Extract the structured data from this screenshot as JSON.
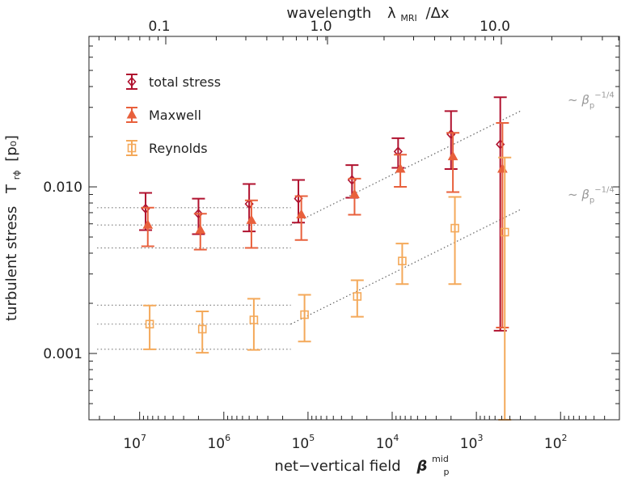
{
  "chart_data": {
    "type": "scatter",
    "title": "",
    "top_axis": {
      "label": "wavelength",
      "label_symbol": "λ",
      "label_sub": "MRI",
      "label_tail": "/Δx",
      "ticks": [
        "0.1",
        "1.0",
        "10.0"
      ]
    },
    "xlabel": "net−vertical field",
    "xlabel_symbol": "β",
    "xlabel_sub": "p",
    "xlabel_sup": "mid",
    "ylabel": "turbulent stress",
    "ylabel_symbol": "T",
    "ylabel_sub": "rϕ",
    "ylabel_unit": "[p₀]",
    "x_scale": "log",
    "x_reversed": true,
    "xlim": [
      40000000.0,
      20.0
    ],
    "y_scale": "log",
    "ylim": [
      0.0004,
      0.08
    ],
    "x_ticks": [
      {
        "value": 10000000.0,
        "base": "10",
        "exp": "7"
      },
      {
        "value": 1000000.0,
        "base": "10",
        "exp": "6"
      },
      {
        "value": 100000.0,
        "base": "10",
        "exp": "5"
      },
      {
        "value": 10000.0,
        "base": "10",
        "exp": "4"
      },
      {
        "value": 1000.0,
        "base": "10",
        "exp": "3"
      },
      {
        "value": 100.0,
        "base": "10",
        "exp": "2"
      }
    ],
    "y_ticks": [
      {
        "value": 0.001,
        "label": "0.001"
      },
      {
        "value": 0.01,
        "label": "0.010"
      }
    ],
    "legend_position": "top-left",
    "series": [
      {
        "name": "total stress",
        "marker": "diamond",
        "color": "#b0122f",
        "points": [
          {
            "x": 8500000.0,
            "y": 0.0074,
            "lo": 0.0055,
            "hi": 0.0092
          },
          {
            "x": 2000000.0,
            "y": 0.0069,
            "lo": 0.0052,
            "hi": 0.0085
          },
          {
            "x": 500000.0,
            "y": 0.0079,
            "lo": 0.0054,
            "hi": 0.0104
          },
          {
            "x": 130000.0,
            "y": 0.0085,
            "lo": 0.0061,
            "hi": 0.011
          },
          {
            "x": 30000.0,
            "y": 0.011,
            "lo": 0.0086,
            "hi": 0.0135
          },
          {
            "x": 8500.0,
            "y": 0.0163,
            "lo": 0.013,
            "hi": 0.0196
          },
          {
            "x": 2000.0,
            "y": 0.0207,
            "lo": 0.0128,
            "hi": 0.0285
          },
          {
            "x": 520.0,
            "y": 0.018,
            "lo": 0.00137,
            "hi": 0.0345
          }
        ]
      },
      {
        "name": "Maxwell",
        "marker": "triangle",
        "color": "#e8603c",
        "points": [
          {
            "x": 8000000.0,
            "y": 0.0059,
            "lo": 0.0044,
            "hi": 0.0075
          },
          {
            "x": 1900000.0,
            "y": 0.0055,
            "lo": 0.0042,
            "hi": 0.0069
          },
          {
            "x": 470000.0,
            "y": 0.0063,
            "lo": 0.0043,
            "hi": 0.0083
          },
          {
            "x": 120000.0,
            "y": 0.0068,
            "lo": 0.0048,
            "hi": 0.0088
          },
          {
            "x": 28000.0,
            "y": 0.009,
            "lo": 0.0068,
            "hi": 0.0112
          },
          {
            "x": 8000.0,
            "y": 0.0128,
            "lo": 0.01,
            "hi": 0.0156
          },
          {
            "x": 1900.0,
            "y": 0.0152,
            "lo": 0.0093,
            "hi": 0.0211
          },
          {
            "x": 490.0,
            "y": 0.0128,
            "lo": 0.00143,
            "hi": 0.0242
          }
        ]
      },
      {
        "name": "Reynolds",
        "marker": "square",
        "color": "#f4a95a",
        "points": [
          {
            "x": 7600000.0,
            "y": 0.0015,
            "lo": 0.00106,
            "hi": 0.00194
          },
          {
            "x": 1800000.0,
            "y": 0.0014,
            "lo": 0.00101,
            "hi": 0.00179
          },
          {
            "x": 440000.0,
            "y": 0.00159,
            "lo": 0.00105,
            "hi": 0.00213
          },
          {
            "x": 110000.0,
            "y": 0.00171,
            "lo": 0.00118,
            "hi": 0.00225
          },
          {
            "x": 26000.0,
            "y": 0.0022,
            "lo": 0.00166,
            "hi": 0.00275
          },
          {
            "x": 7600.0,
            "y": 0.00359,
            "lo": 0.00261,
            "hi": 0.00457
          },
          {
            "x": 1800.0,
            "y": 0.00565,
            "lo": 0.00261,
            "hi": 0.0087
          },
          {
            "x": 460.0,
            "y": 0.00535,
            "lo": 0.0004,
            "hi": 0.015
          }
        ]
      }
    ],
    "reference_lines": [
      {
        "kind": "plateau",
        "x_from": 32000000.0,
        "x_to": 160000.0,
        "y": 0.0075
      },
      {
        "kind": "plateau",
        "x_from": 32000000.0,
        "x_to": 160000.0,
        "y": 0.0059
      },
      {
        "kind": "plateau",
        "x_from": 32000000.0,
        "x_to": 160000.0,
        "y": 0.0043
      },
      {
        "kind": "plateau",
        "x_from": 32000000.0,
        "x_to": 160000.0,
        "y": 0.00195
      },
      {
        "kind": "plateau",
        "x_from": 32000000.0,
        "x_to": 160000.0,
        "y": 0.0015
      },
      {
        "kind": "plateau",
        "x_from": 32000000.0,
        "x_to": 160000.0,
        "y": 0.00106
      },
      {
        "kind": "power-law",
        "x_from": 160000.0,
        "x_to": 300.0,
        "y_from": 0.0059,
        "y_to": 0.0285
      },
      {
        "kind": "power-law",
        "x_from": 160000.0,
        "x_to": 300.0,
        "y_from": 0.0015,
        "y_to": 0.0073
      }
    ],
    "annotations": [
      {
        "text": "~ β",
        "sub": "p",
        "sup": "−1/4",
        "near_y": 0.0315
      },
      {
        "text": "~ β",
        "sub": "p",
        "sup": "−1/4",
        "near_y": 0.0085
      }
    ]
  }
}
